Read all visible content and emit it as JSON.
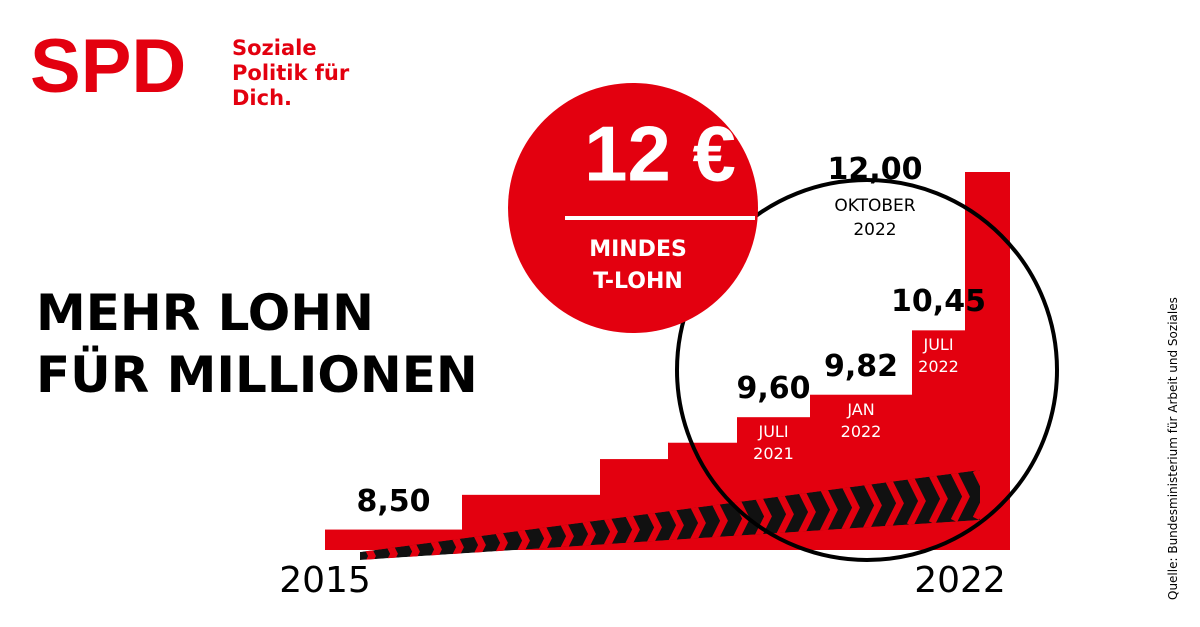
{
  "logo": {
    "brand": "SPD",
    "slogan": "Soziale Politik für Dich."
  },
  "headline": "MEHR LOHN FÜR MILLIONEN",
  "badge": {
    "amount": "12 €",
    "caption": "MINDEST-LOHN"
  },
  "source": "Quelle: Bundesministerium für Arbeit und Soziales",
  "chart_data": {
    "type": "step",
    "values": [
      8.5,
      8.84,
      9.19,
      9.35,
      9.6,
      9.82,
      10.45,
      12.0
    ],
    "value_labels": [
      "8,50",
      null,
      null,
      null,
      "9,60",
      "9,82",
      "10,45",
      "12,00"
    ],
    "period_labels": [
      null,
      null,
      null,
      null,
      "JULI 2021",
      "JAN 2022",
      "JULI 2022",
      "OKTOBER 2022"
    ],
    "color": "#e3000f",
    "ylim": [
      8.3,
      12.0
    ],
    "axis_start": "2015",
    "axis_end": "2022"
  }
}
